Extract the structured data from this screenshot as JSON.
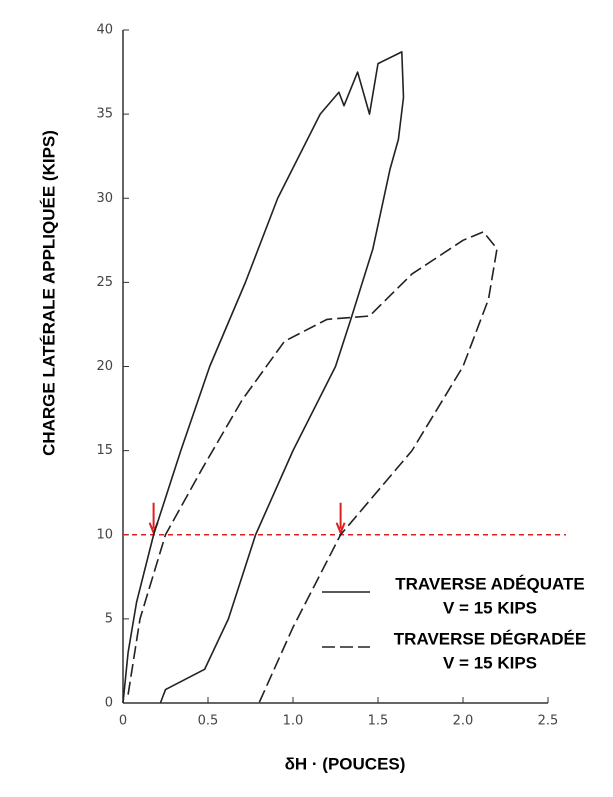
{
  "chart_data": {
    "type": "line",
    "x_label": "δH · (POUCES)",
    "y_label": "CHARGE LATÉRALE APPLIQUÉE (KIPS)",
    "xlim": [
      0,
      2.5
    ],
    "xticks": [
      0,
      {
        "value": 0.5,
        "label": "0.5"
      },
      {
        "value": 1,
        "label": "1.0"
      },
      {
        "value": 1.5,
        "label": "1.5"
      },
      {
        "value": 2,
        "label": "2.0"
      },
      {
        "value": 2.5,
        "label": "2.5"
      }
    ],
    "ylim": [
      0,
      40
    ],
    "yticks": [
      0,
      5,
      10,
      15,
      20,
      25,
      30,
      35,
      40
    ],
    "series": [
      {
        "name": "TRAVERSE ADÉQUATE",
        "condition": "V = 15 KIPS",
        "color": "#222",
        "dash": "solid",
        "x": [
          0,
          0.03,
          0.08,
          0.18,
          0.34,
          0.51,
          0.72,
          0.91,
          1.16,
          1.27,
          1.3,
          1.38,
          1.45,
          1.5,
          1.6,
          1.64,
          1.65,
          1.62,
          1.57,
          1.47,
          1.34,
          1.25,
          1.0,
          0.78,
          0.62,
          0.48,
          0.25,
          0.22
        ],
        "values": [
          0,
          3,
          6,
          10,
          15,
          20,
          25,
          30,
          35,
          36.3,
          35.5,
          37.5,
          35,
          38,
          38.5,
          38.7,
          36,
          33.5,
          31.7,
          27,
          22.8,
          20,
          15,
          10,
          5,
          2,
          0.8,
          0
        ]
      },
      {
        "name": "TRAVERSE DÉGRADÉE",
        "condition": "V = 15 KIPS",
        "color": "#222",
        "dash": "dashed",
        "x": [
          0.03,
          0.1,
          0.25,
          0.47,
          0.7,
          0.95,
          1.2,
          1.45,
          1.7,
          2.0,
          2.12,
          2.2,
          2.15,
          2.0,
          1.7,
          1.28,
          1.0,
          0.8
        ],
        "values": [
          0.5,
          5,
          10,
          14,
          18,
          21.5,
          22.8,
          23,
          25.5,
          27.5,
          28,
          27,
          24,
          20,
          15,
          10,
          4.5,
          0
        ]
      }
    ],
    "reference_line": {
      "y": 10,
      "color": "#e02020"
    },
    "arrows_x": [
      0.18,
      1.28
    ]
  }
}
